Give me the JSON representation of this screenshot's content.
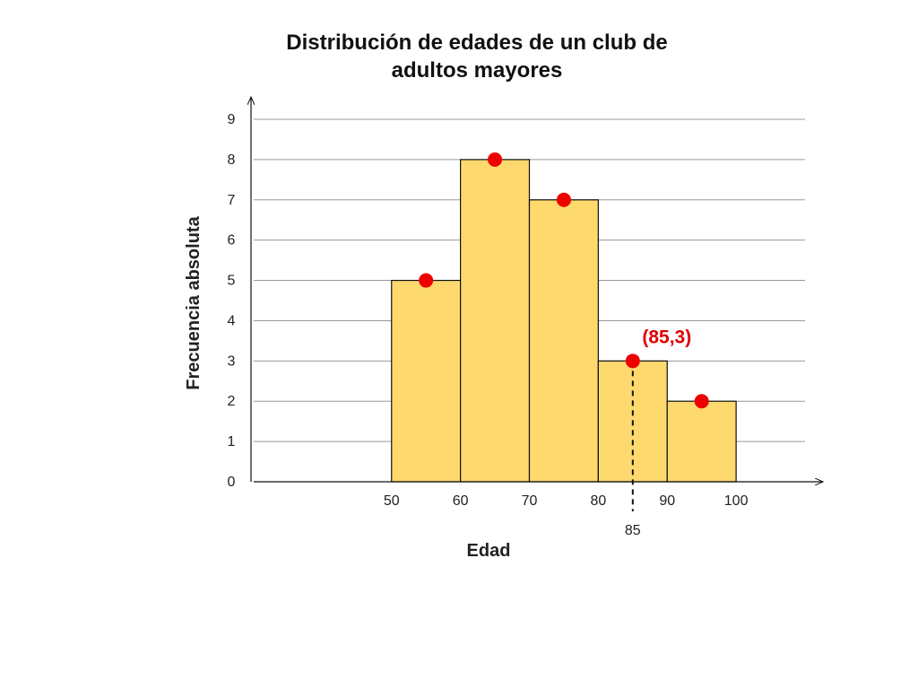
{
  "chart_data": {
    "type": "bar",
    "title": "Distribución de edades de un club de\nadultos mayores",
    "xlabel": "Edad",
    "ylabel": "Frecuencia absoluta",
    "xlim": [
      30,
      110
    ],
    "ylim": [
      0,
      9
    ],
    "grid": true,
    "x_ticks": [
      50,
      60,
      70,
      80,
      90,
      100
    ],
    "y_ticks": [
      0,
      1,
      2,
      3,
      4,
      5,
      6,
      7,
      8,
      9
    ],
    "bins": [
      {
        "start": 50,
        "end": 60,
        "value": 5
      },
      {
        "start": 60,
        "end": 70,
        "value": 8
      },
      {
        "start": 70,
        "end": 80,
        "value": 7
      },
      {
        "start": 80,
        "end": 90,
        "value": 3
      },
      {
        "start": 90,
        "end": 100,
        "value": 2
      }
    ],
    "midpoints": [
      {
        "x": 55,
        "y": 5
      },
      {
        "x": 65,
        "y": 8
      },
      {
        "x": 75,
        "y": 7
      },
      {
        "x": 85,
        "y": 3
      },
      {
        "x": 95,
        "y": 2
      }
    ],
    "highlight": {
      "x": 85,
      "y": 3,
      "label": "(85,3)",
      "x_tick_label": "85"
    },
    "colors": {
      "bar": "#fdd96e",
      "bar_edge": "#111111",
      "point": "#ee0000",
      "grid": "#999999",
      "annotation": "#e00000"
    }
  }
}
